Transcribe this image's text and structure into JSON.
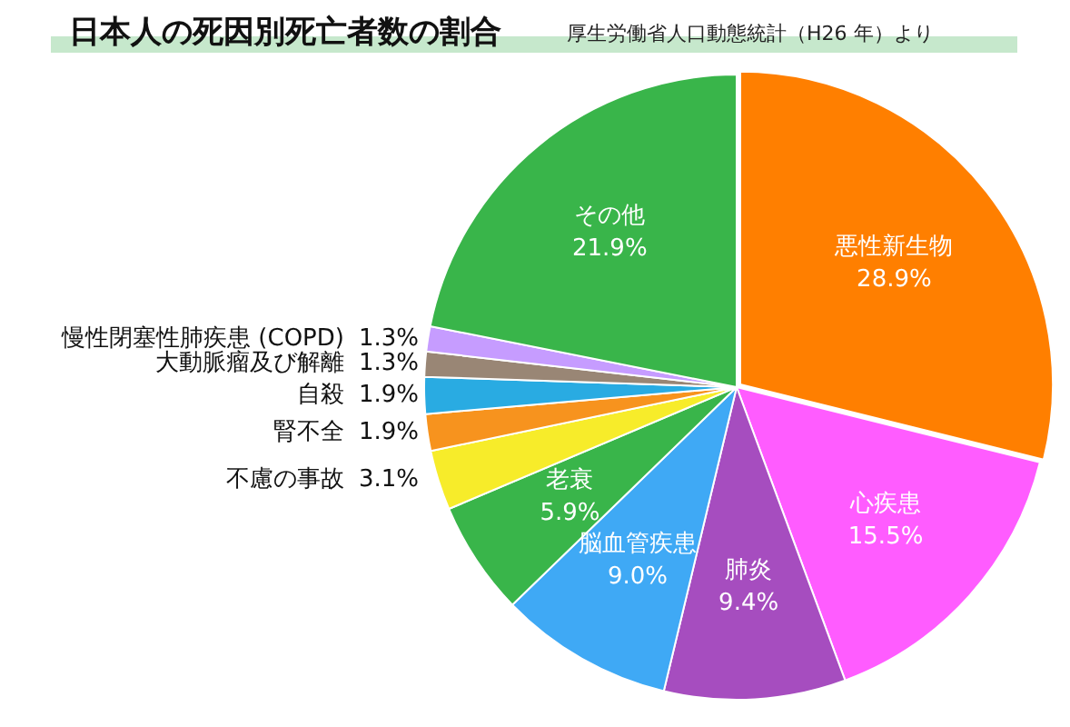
{
  "chart_data": {
    "type": "pie",
    "title": "日本人の死因別死亡者数の割合",
    "subtitle": "厚生労働省人口動態統計（H26 年）より",
    "categories": [
      "悪性新生物",
      "心疾患",
      "肺炎",
      "脳血管疾患",
      "老衰",
      "不慮の事故",
      "腎不全",
      "自殺",
      "大動脈瘤及び解離",
      "慢性閉塞性肺疾患 (COPD)",
      "その他"
    ],
    "values": [
      28.9,
      15.5,
      9.4,
      9.0,
      5.9,
      3.1,
      1.9,
      1.9,
      1.3,
      1.3,
      21.9
    ],
    "colors": [
      "#ff7f00",
      "#ff5cff",
      "#a64dbf",
      "#3fa9f5",
      "#39b54a",
      "#f7ec2a",
      "#f7931e",
      "#29abe2",
      "#998675",
      "#c69cff",
      "#39b54a"
    ],
    "value_labels": [
      "28.9%",
      "15.5%",
      "9.4%",
      "9.0%",
      "5.9%",
      "3.1%",
      "1.9%",
      "1.9%",
      "1.3%",
      "1.3%",
      "21.9%"
    ],
    "legend": false
  }
}
